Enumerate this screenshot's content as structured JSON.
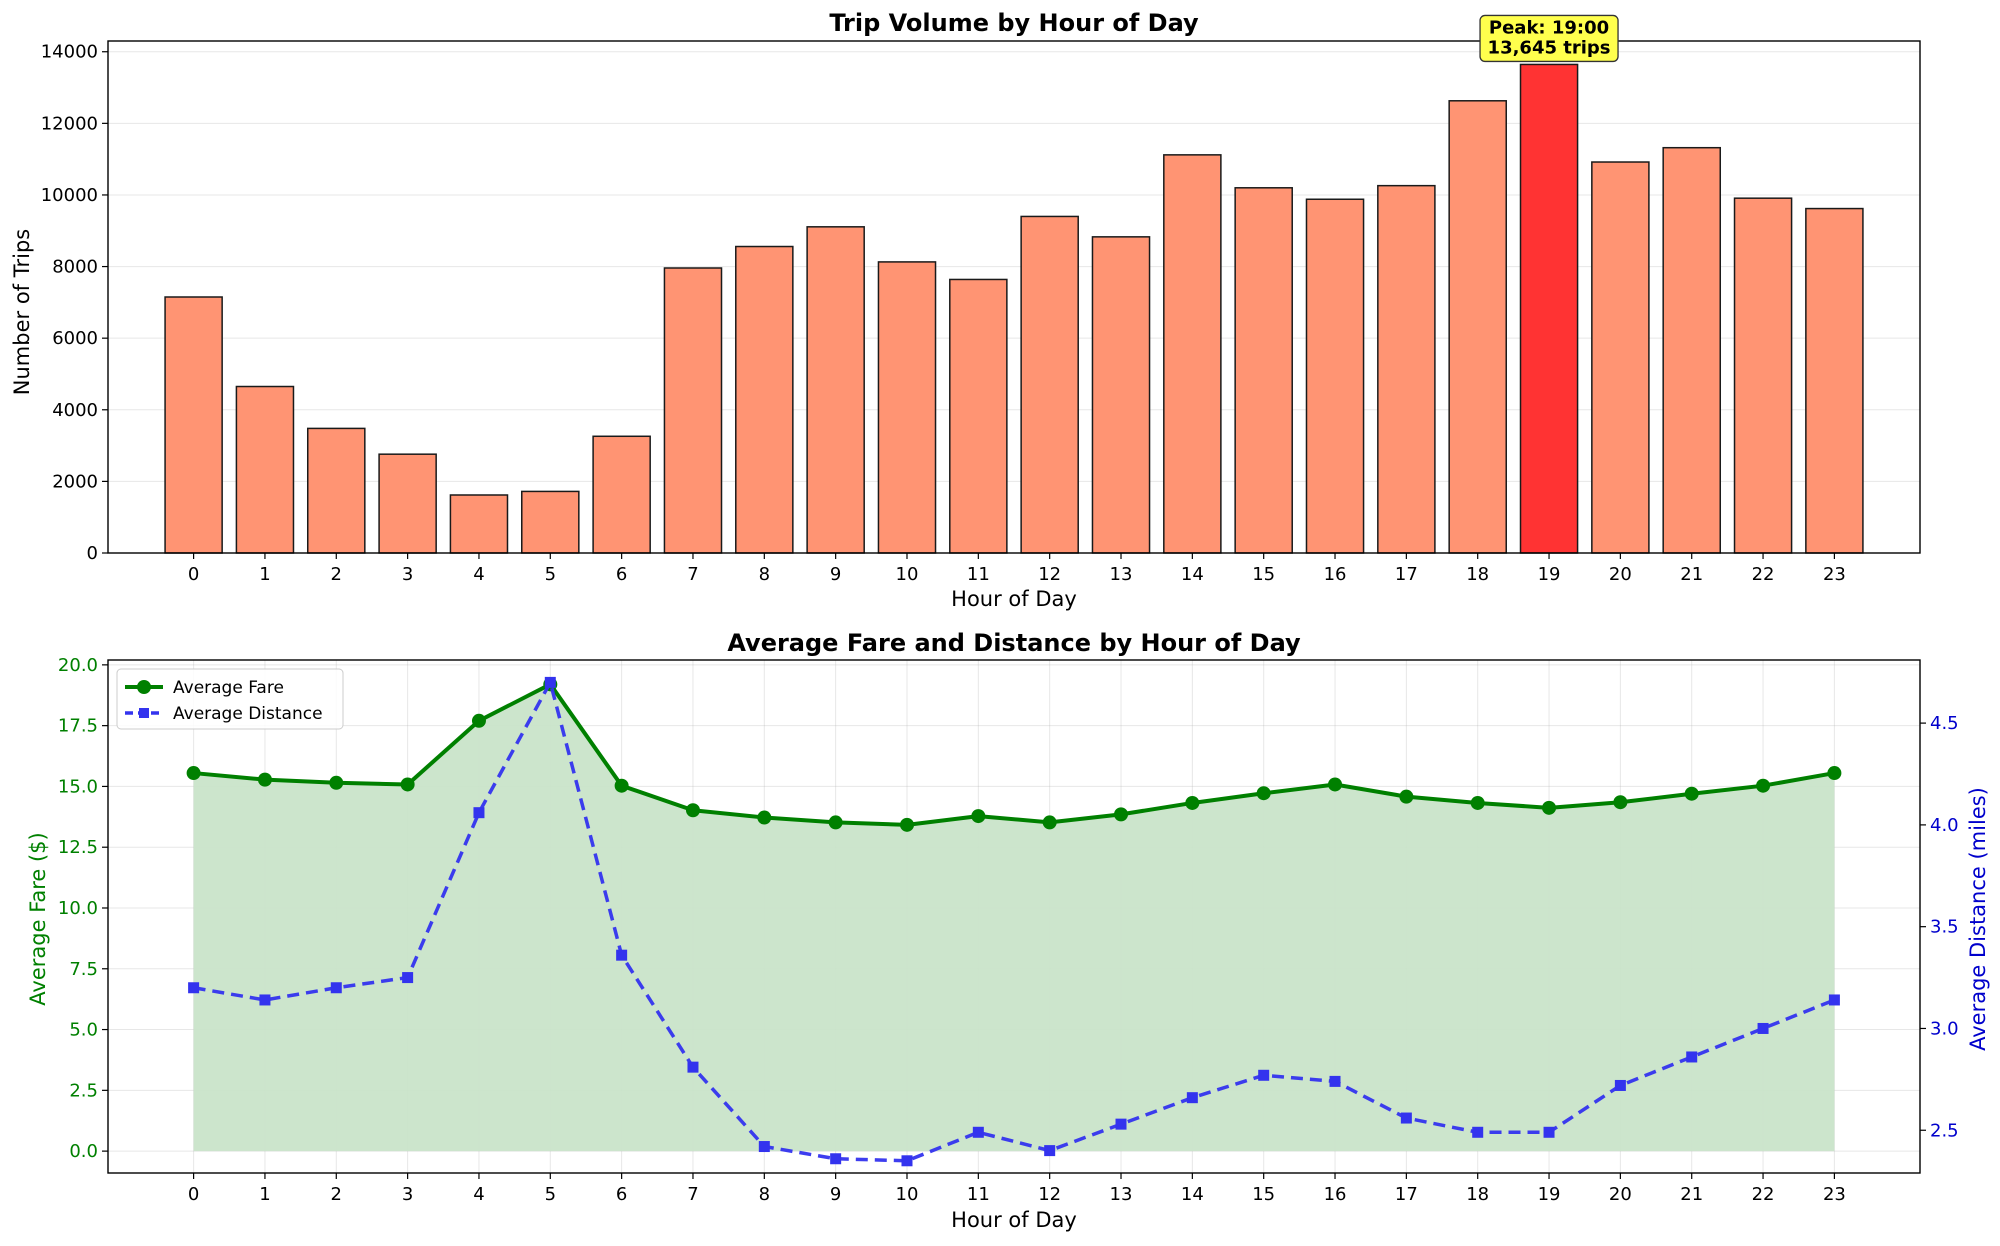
{
  "chart_data": [
    {
      "type": "bar",
      "title": "Trip Volume by Hour of Day",
      "xlabel": "Hour of Day",
      "ylabel": "Number of Trips",
      "categories": [
        "0",
        "1",
        "2",
        "3",
        "4",
        "5",
        "6",
        "7",
        "8",
        "9",
        "10",
        "11",
        "12",
        "13",
        "14",
        "15",
        "16",
        "17",
        "18",
        "19",
        "20",
        "21",
        "22",
        "23"
      ],
      "values": [
        7150,
        4650,
        3480,
        2760,
        1620,
        1720,
        3260,
        7960,
        8560,
        9110,
        8130,
        7640,
        9400,
        8830,
        11120,
        10200,
        9880,
        10260,
        12630,
        13645,
        10920,
        11320,
        9910,
        9620
      ],
      "ylim": [
        0,
        14300
      ],
      "yticks": [
        0,
        2000,
        4000,
        6000,
        8000,
        10000,
        12000,
        14000
      ],
      "grid": true,
      "colors": {
        "bar": "#ff9473",
        "highlight": "#ff3333",
        "edge": "#1a1a1a"
      },
      "highlight_index": 19,
      "annotation": {
        "lines": [
          "Peak: 19:00",
          "13,645 trips"
        ],
        "color": "#ffff4d"
      }
    },
    {
      "type": "line",
      "title": "Average Fare and Distance by Hour of Day",
      "xlabel": "Hour of Day",
      "ylabel": "Average Fare ($)",
      "y2label": "Average Distance (miles)",
      "x": [
        0,
        1,
        2,
        3,
        4,
        5,
        6,
        7,
        8,
        9,
        10,
        11,
        12,
        13,
        14,
        15,
        16,
        17,
        18,
        19,
        20,
        21,
        22,
        23
      ],
      "ylim": [
        -0.9,
        20.2
      ],
      "yticks": [
        0.0,
        2.5,
        5.0,
        7.5,
        10.0,
        12.5,
        15.0,
        17.5,
        20.0
      ],
      "ytick_labels": [
        "0.0",
        "2.5",
        "5.0",
        "7.5",
        "10.0",
        "12.5",
        "15.0",
        "17.5",
        "20.0"
      ],
      "y2lim": [
        2.29,
        4.81
      ],
      "y2ticks": [
        2.5,
        3.0,
        3.5,
        4.0,
        4.5
      ],
      "y2tick_labels": [
        "2.5",
        "3.0",
        "3.5",
        "4.0",
        "4.5"
      ],
      "grid": true,
      "legend_position": "top-left",
      "series": [
        {
          "name": "Average Fare",
          "axis": "left",
          "color": "#008000",
          "fill_color": "#c9e4c9",
          "values": [
            15.55,
            15.28,
            15.15,
            15.08,
            17.7,
            19.2,
            15.03,
            14.02,
            13.72,
            13.52,
            13.42,
            13.78,
            13.52,
            13.85,
            14.32,
            14.72,
            15.08,
            14.58,
            14.32,
            14.12,
            14.35,
            14.7,
            15.03,
            15.55
          ]
        },
        {
          "name": "Average Distance",
          "axis": "right",
          "color": "#3333ee",
          "values": [
            3.2,
            3.14,
            3.2,
            3.25,
            4.06,
            4.7,
            3.36,
            2.81,
            2.42,
            2.36,
            2.35,
            2.49,
            2.4,
            2.53,
            2.66,
            2.77,
            2.74,
            2.56,
            2.49,
            2.49,
            2.72,
            2.86,
            3.0,
            3.14
          ]
        }
      ]
    }
  ]
}
